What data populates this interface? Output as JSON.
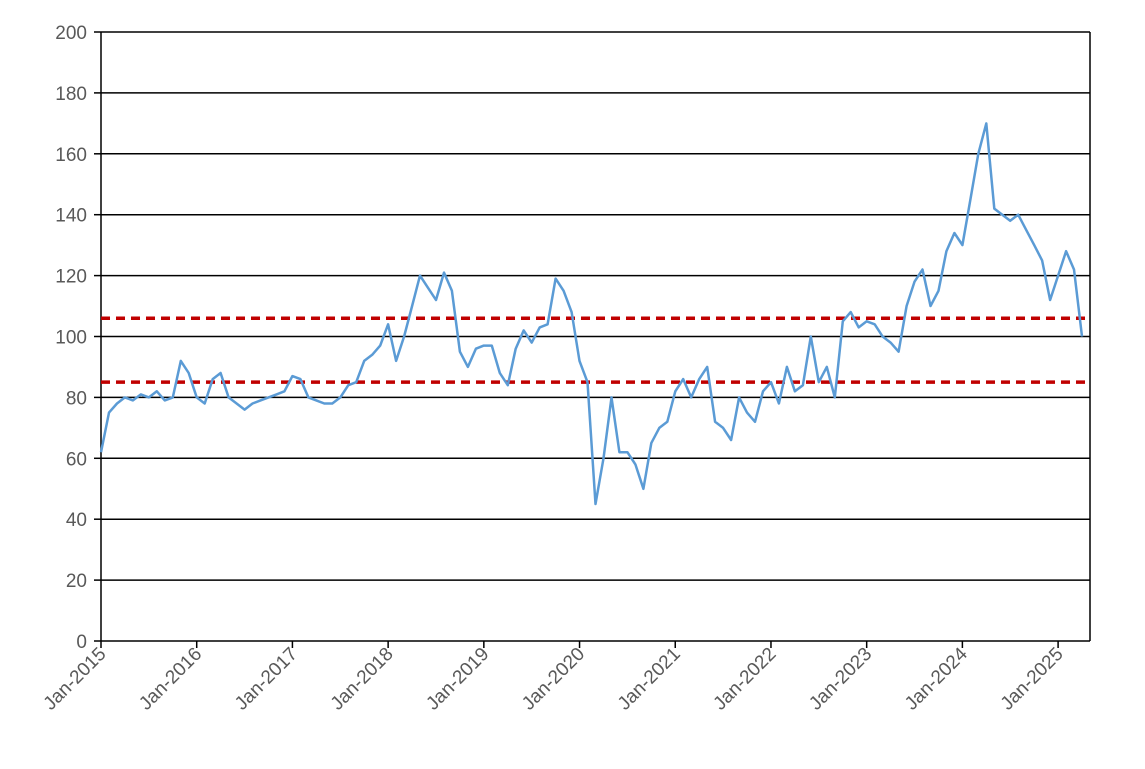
{
  "chart_data": {
    "type": "line",
    "x": [
      "2015-01",
      "2015-02",
      "2015-03",
      "2015-04",
      "2015-05",
      "2015-06",
      "2015-07",
      "2015-08",
      "2015-09",
      "2015-10",
      "2015-11",
      "2015-12",
      "2016-01",
      "2016-02",
      "2016-03",
      "2016-04",
      "2016-05",
      "2016-06",
      "2016-07",
      "2016-08",
      "2016-09",
      "2016-10",
      "2016-11",
      "2016-12",
      "2017-01",
      "2017-02",
      "2017-03",
      "2017-04",
      "2017-05",
      "2017-06",
      "2017-07",
      "2017-08",
      "2017-09",
      "2017-10",
      "2017-11",
      "2017-12",
      "2018-01",
      "2018-02",
      "2018-03",
      "2018-04",
      "2018-05",
      "2018-06",
      "2018-07",
      "2018-08",
      "2018-09",
      "2018-10",
      "2018-11",
      "2018-12",
      "2019-01",
      "2019-02",
      "2019-03",
      "2019-04",
      "2019-05",
      "2019-06",
      "2019-07",
      "2019-08",
      "2019-09",
      "2019-10",
      "2019-11",
      "2019-12",
      "2020-01",
      "2020-02",
      "2020-03",
      "2020-04",
      "2020-05",
      "2020-06",
      "2020-07",
      "2020-08",
      "2020-09",
      "2020-10",
      "2020-11",
      "2020-12",
      "2021-01",
      "2021-02",
      "2021-03",
      "2021-04",
      "2021-05",
      "2021-06",
      "2021-07",
      "2021-08",
      "2021-09",
      "2021-10",
      "2021-11",
      "2021-12",
      "2022-01",
      "2022-02",
      "2022-03",
      "2022-04",
      "2022-05",
      "2022-06",
      "2022-07",
      "2022-08",
      "2022-09",
      "2022-10",
      "2022-11",
      "2022-12",
      "2023-01",
      "2023-02",
      "2023-03",
      "2023-04",
      "2023-05",
      "2023-06",
      "2023-07",
      "2023-08",
      "2023-09",
      "2023-10",
      "2023-11",
      "2023-12",
      "2024-01",
      "2024-02",
      "2024-03",
      "2024-04",
      "2024-05",
      "2024-06",
      "2024-07",
      "2024-08",
      "2024-09",
      "2024-10",
      "2024-11",
      "2024-12",
      "2025-01",
      "2025-02",
      "2025-03",
      "2025-04"
    ],
    "series": [
      {
        "color": "#5b9bd5",
        "values": [
          62,
          75,
          78,
          80,
          79,
          81,
          80,
          82,
          79,
          80,
          92,
          88,
          80,
          78,
          86,
          88,
          80,
          78,
          76,
          78,
          79,
          80,
          81,
          82,
          87,
          86,
          80,
          79,
          78,
          78,
          80,
          84,
          85,
          92,
          94,
          97,
          104,
          92,
          100,
          110,
          120,
          116,
          112,
          121,
          115,
          95,
          90,
          96,
          97,
          97,
          88,
          84,
          96,
          102,
          98,
          103,
          104,
          119,
          115,
          108,
          92,
          85,
          45,
          60,
          80,
          62,
          62,
          58,
          50,
          65,
          70,
          72,
          82,
          86,
          80,
          86,
          90,
          72,
          70,
          66,
          80,
          75,
          72,
          82,
          85,
          78,
          90,
          82,
          84,
          100,
          85,
          90,
          80,
          105,
          108,
          103,
          105,
          104,
          100,
          98,
          95,
          110,
          118,
          122,
          110,
          115,
          128,
          134,
          130,
          145,
          160,
          170,
          142,
          140,
          138,
          140,
          135,
          130,
          125,
          112,
          120,
          128,
          122,
          100
        ]
      }
    ],
    "reference_lines": [
      {
        "value": 106,
        "color": "#c00000"
      },
      {
        "value": 85,
        "color": "#c00000"
      }
    ],
    "xlim": [
      "2015-01",
      "2025-05"
    ],
    "xticks": [
      {
        "value": "2015-01",
        "label": "Jan-2015"
      },
      {
        "value": "2016-01",
        "label": "Jan-2016"
      },
      {
        "value": "2017-01",
        "label": "Jan-2017"
      },
      {
        "value": "2018-01",
        "label": "Jan-2018"
      },
      {
        "value": "2019-01",
        "label": "Jan-2019"
      },
      {
        "value": "2020-01",
        "label": "Jan-2020"
      },
      {
        "value": "2021-01",
        "label": "Jan-2021"
      },
      {
        "value": "2022-01",
        "label": "Jan-2022"
      },
      {
        "value": "2023-01",
        "label": "Jan-2023"
      },
      {
        "value": "2024-01",
        "label": "Jan-2024"
      },
      {
        "value": "2025-01",
        "label": "Jan-2025"
      }
    ],
    "ylim": [
      0,
      200
    ],
    "yticks": [
      0,
      20,
      40,
      60,
      80,
      100,
      120,
      140,
      160,
      180,
      200
    ],
    "grid": true
  }
}
